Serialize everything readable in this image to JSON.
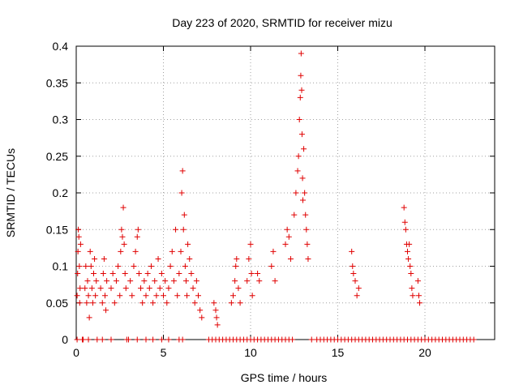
{
  "chart_data": {
    "type": "scatter",
    "title": "Day 223 of 2020, SRMTID for receiver mizu",
    "xlabel": "GPS time / hours",
    "ylabel": "SRMTID / TECUs",
    "xlim": [
      0,
      24
    ],
    "ylim": [
      0,
      0.4
    ],
    "xticks": [
      0,
      5,
      10,
      15,
      20
    ],
    "xtick_labels": [
      "0",
      "5",
      "10",
      "15",
      "20"
    ],
    "yticks": [
      0,
      0.05,
      0.1,
      0.15,
      0.2,
      0.25,
      0.3,
      0.35,
      0.4
    ],
    "ytick_labels": [
      "0",
      "0.05",
      "0.1",
      "0.15",
      "0.2",
      "0.25",
      "0.3",
      "0.35",
      "0.4"
    ],
    "grid": true,
    "marker": "+",
    "color": "#e00000",
    "series": [
      {
        "name": "SRMTID",
        "points": [
          [
            0.05,
            0.06
          ],
          [
            0.08,
            0.09
          ],
          [
            0.1,
            0.12
          ],
          [
            0.12,
            0.15
          ],
          [
            0.15,
            0.14
          ],
          [
            0.18,
            0.1
          ],
          [
            0.2,
            0.05
          ],
          [
            0.22,
            0.07
          ],
          [
            0.25,
            0.13
          ],
          [
            0.05,
            0.0
          ],
          [
            0.35,
            0.0
          ],
          [
            0.4,
            0.0
          ],
          [
            0.5,
            0.07
          ],
          [
            0.55,
            0.1
          ],
          [
            0.6,
            0.05
          ],
          [
            0.65,
            0.08
          ],
          [
            0.7,
            0.06
          ],
          [
            0.75,
            0.03
          ],
          [
            0.8,
            0.12
          ],
          [
            0.85,
            0.1
          ],
          [
            0.9,
            0.07
          ],
          [
            0.95,
            0.05
          ],
          [
            1.0,
            0.09
          ],
          [
            1.05,
            0.11
          ],
          [
            1.1,
            0.06
          ],
          [
            1.15,
            0.08
          ],
          [
            0.7,
            0.0
          ],
          [
            1.2,
            0.0
          ],
          [
            1.4,
            0.07
          ],
          [
            1.5,
            0.05
          ],
          [
            1.55,
            0.09
          ],
          [
            1.6,
            0.11
          ],
          [
            1.65,
            0.06
          ],
          [
            1.7,
            0.04
          ],
          [
            1.75,
            0.08
          ],
          [
            1.5,
            0.0
          ],
          [
            2.0,
            0.07
          ],
          [
            2.1,
            0.09
          ],
          [
            2.2,
            0.05
          ],
          [
            2.3,
            0.08
          ],
          [
            2.4,
            0.1
          ],
          [
            2.5,
            0.06
          ],
          [
            2.55,
            0.12
          ],
          [
            2.6,
            0.15
          ],
          [
            2.65,
            0.14
          ],
          [
            2.7,
            0.18
          ],
          [
            2.75,
            0.13
          ],
          [
            2.8,
            0.09
          ],
          [
            2.85,
            0.07
          ],
          [
            2.0,
            0.0
          ],
          [
            2.9,
            0.0
          ],
          [
            3.0,
            0.0
          ],
          [
            3.1,
            0.08
          ],
          [
            3.2,
            0.06
          ],
          [
            3.3,
            0.1
          ],
          [
            3.4,
            0.12
          ],
          [
            3.5,
            0.14
          ],
          [
            3.55,
            0.15
          ],
          [
            3.6,
            0.09
          ],
          [
            3.7,
            0.07
          ],
          [
            3.8,
            0.05
          ],
          [
            3.9,
            0.08
          ],
          [
            4.0,
            0.06
          ],
          [
            4.1,
            0.09
          ],
          [
            4.2,
            0.07
          ],
          [
            4.3,
            0.1
          ],
          [
            4.4,
            0.05
          ],
          [
            4.5,
            0.08
          ],
          [
            4.6,
            0.06
          ],
          [
            4.7,
            0.11
          ],
          [
            4.8,
            0.07
          ],
          [
            4.9,
            0.09
          ],
          [
            5.0,
            0.06
          ],
          [
            5.1,
            0.08
          ],
          [
            5.2,
            0.05
          ],
          [
            5.3,
            0.07
          ],
          [
            5.4,
            0.1
          ],
          [
            5.5,
            0.12
          ],
          [
            5.6,
            0.08
          ],
          [
            5.7,
            0.15
          ],
          [
            5.8,
            0.06
          ],
          [
            3.5,
            0.0
          ],
          [
            4.0,
            0.0
          ],
          [
            4.4,
            0.0
          ],
          [
            4.9,
            0.0
          ],
          [
            5.3,
            0.0
          ],
          [
            5.9,
            0.09
          ],
          [
            6.0,
            0.12
          ],
          [
            6.05,
            0.2
          ],
          [
            6.1,
            0.23
          ],
          [
            6.15,
            0.15
          ],
          [
            6.2,
            0.17
          ],
          [
            6.25,
            0.1
          ],
          [
            6.3,
            0.08
          ],
          [
            6.35,
            0.06
          ],
          [
            6.4,
            0.13
          ],
          [
            6.5,
            0.11
          ],
          [
            6.6,
            0.09
          ],
          [
            6.7,
            0.07
          ],
          [
            6.8,
            0.05
          ],
          [
            6.9,
            0.08
          ],
          [
            7.0,
            0.06
          ],
          [
            7.1,
            0.04
          ],
          [
            7.2,
            0.03
          ],
          [
            5.9,
            0.0
          ],
          [
            6.1,
            0.0
          ],
          [
            7.6,
            0.0
          ],
          [
            7.8,
            0.0
          ],
          [
            8.0,
            0.0
          ],
          [
            8.2,
            0.0
          ],
          [
            8.4,
            0.0
          ],
          [
            8.6,
            0.0
          ],
          [
            8.8,
            0.0
          ],
          [
            9.0,
            0.0
          ],
          [
            9.2,
            0.0
          ],
          [
            9.4,
            0.0
          ],
          [
            9.6,
            0.0
          ],
          [
            9.8,
            0.0
          ],
          [
            10.0,
            0.0
          ],
          [
            10.2,
            0.0
          ],
          [
            10.4,
            0.0
          ],
          [
            10.6,
            0.0
          ],
          [
            10.8,
            0.0
          ],
          [
            11.0,
            0.0
          ],
          [
            11.2,
            0.0
          ],
          [
            11.4,
            0.0
          ],
          [
            11.6,
            0.0
          ],
          [
            11.8,
            0.0
          ],
          [
            12.0,
            0.0
          ],
          [
            12.2,
            0.0
          ],
          [
            12.4,
            0.0
          ],
          [
            7.9,
            0.05
          ],
          [
            8.0,
            0.04
          ],
          [
            8.05,
            0.03
          ],
          [
            8.1,
            0.02
          ],
          [
            8.9,
            0.05
          ],
          [
            9.0,
            0.06
          ],
          [
            9.1,
            0.08
          ],
          [
            9.15,
            0.1
          ],
          [
            9.2,
            0.11
          ],
          [
            9.3,
            0.07
          ],
          [
            9.4,
            0.05
          ],
          [
            9.8,
            0.08
          ],
          [
            9.9,
            0.11
          ],
          [
            10.0,
            0.13
          ],
          [
            10.05,
            0.09
          ],
          [
            10.1,
            0.06
          ],
          [
            10.4,
            0.09
          ],
          [
            10.5,
            0.08
          ],
          [
            11.2,
            0.1
          ],
          [
            11.3,
            0.12
          ],
          [
            11.4,
            0.08
          ],
          [
            12.0,
            0.13
          ],
          [
            12.1,
            0.15
          ],
          [
            12.2,
            0.14
          ],
          [
            12.3,
            0.11
          ],
          [
            12.5,
            0.17
          ],
          [
            12.6,
            0.2
          ],
          [
            12.7,
            0.23
          ],
          [
            12.75,
            0.25
          ],
          [
            12.8,
            0.3
          ],
          [
            12.85,
            0.33
          ],
          [
            12.88,
            0.36
          ],
          [
            12.9,
            0.39
          ],
          [
            12.93,
            0.34
          ],
          [
            12.95,
            0.28
          ],
          [
            12.98,
            0.22
          ],
          [
            13.0,
            0.19
          ],
          [
            13.05,
            0.26
          ],
          [
            13.1,
            0.2
          ],
          [
            13.15,
            0.17
          ],
          [
            13.2,
            0.15
          ],
          [
            13.25,
            0.13
          ],
          [
            13.3,
            0.11
          ],
          [
            13.5,
            0.0
          ],
          [
            13.8,
            0.0
          ],
          [
            14.0,
            0.0
          ],
          [
            14.2,
            0.0
          ],
          [
            14.4,
            0.0
          ],
          [
            14.6,
            0.0
          ],
          [
            14.8,
            0.0
          ],
          [
            15.0,
            0.0
          ],
          [
            15.2,
            0.0
          ],
          [
            15.4,
            0.0
          ],
          [
            15.6,
            0.0
          ],
          [
            15.8,
            0.0
          ],
          [
            16.0,
            0.0
          ],
          [
            16.2,
            0.0
          ],
          [
            16.4,
            0.0
          ],
          [
            16.6,
            0.0
          ],
          [
            16.8,
            0.0
          ],
          [
            17.0,
            0.0
          ],
          [
            17.2,
            0.0
          ],
          [
            17.4,
            0.0
          ],
          [
            17.6,
            0.0
          ],
          [
            17.8,
            0.0
          ],
          [
            18.0,
            0.0
          ],
          [
            18.2,
            0.0
          ],
          [
            18.4,
            0.0
          ],
          [
            18.6,
            0.0
          ],
          [
            18.8,
            0.0
          ],
          [
            19.0,
            0.0
          ],
          [
            19.2,
            0.0
          ],
          [
            19.4,
            0.0
          ],
          [
            19.6,
            0.0
          ],
          [
            19.8,
            0.0
          ],
          [
            20.0,
            0.0
          ],
          [
            20.2,
            0.0
          ],
          [
            20.4,
            0.0
          ],
          [
            20.6,
            0.0
          ],
          [
            20.8,
            0.0
          ],
          [
            21.0,
            0.0
          ],
          [
            21.2,
            0.0
          ],
          [
            21.4,
            0.0
          ],
          [
            21.6,
            0.0
          ],
          [
            21.8,
            0.0
          ],
          [
            22.0,
            0.0
          ],
          [
            22.2,
            0.0
          ],
          [
            22.4,
            0.0
          ],
          [
            22.6,
            0.0
          ],
          [
            22.8,
            0.0
          ],
          [
            15.8,
            0.12
          ],
          [
            15.85,
            0.1
          ],
          [
            15.9,
            0.09
          ],
          [
            16.0,
            0.08
          ],
          [
            16.1,
            0.06
          ],
          [
            16.2,
            0.07
          ],
          [
            18.8,
            0.18
          ],
          [
            18.85,
            0.16
          ],
          [
            18.9,
            0.15
          ],
          [
            18.95,
            0.13
          ],
          [
            19.0,
            0.12
          ],
          [
            19.05,
            0.11
          ],
          [
            19.1,
            0.13
          ],
          [
            19.15,
            0.1
          ],
          [
            19.2,
            0.09
          ],
          [
            19.25,
            0.07
          ],
          [
            19.3,
            0.06
          ],
          [
            19.6,
            0.08
          ],
          [
            19.65,
            0.06
          ],
          [
            19.7,
            0.05
          ]
        ]
      }
    ]
  }
}
